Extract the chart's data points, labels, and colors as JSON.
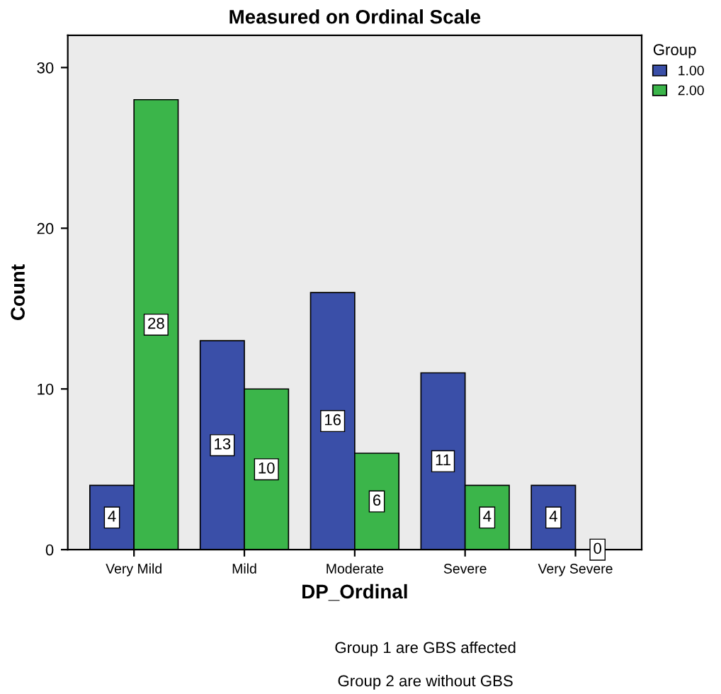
{
  "chart_data": {
    "type": "bar",
    "title": "Measured on Ordinal Scale",
    "xlabel": "DP_Ordinal",
    "ylabel": "Count",
    "legend_title": "Group",
    "categories": [
      "Very Mild",
      "Mild",
      "Moderate",
      "Severe",
      "Very Severe"
    ],
    "series": [
      {
        "name": "1.00",
        "color": "#3a4fa8",
        "values": [
          4,
          13,
          16,
          11,
          4
        ]
      },
      {
        "name": "2.00",
        "color": "#3bb54a",
        "values": [
          28,
          10,
          6,
          4,
          0
        ]
      }
    ],
    "ylim": [
      0,
      32
    ],
    "yticks": [
      0,
      10,
      20,
      30
    ],
    "grid": false,
    "legend": "top right",
    "data_labels": true,
    "annotations": [
      "Group 1 are GBS affected",
      "Group 2 are without GBS"
    ]
  }
}
